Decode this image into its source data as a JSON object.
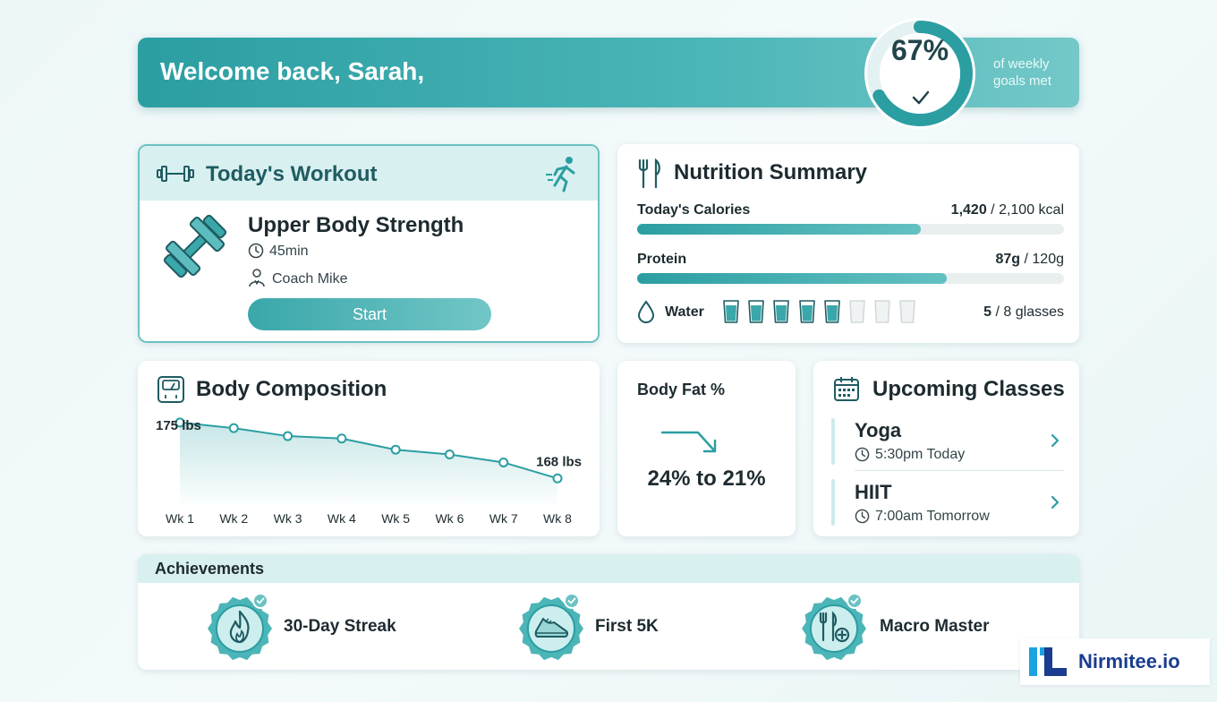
{
  "header": {
    "welcome": "Welcome back, Sarah,",
    "goal_percent": "67%",
    "goal_fraction": 0.67,
    "goal_caption_line1": "of weekly",
    "goal_caption_line2": "goals met"
  },
  "workout": {
    "title": "Today's Workout",
    "name": "Upper Body Strength",
    "duration": "45min",
    "coach": "Coach Mike",
    "start_label": "Start"
  },
  "nutrition": {
    "title": "Nutrition Summary",
    "calories": {
      "label": "Today's Calories",
      "current": "1,420",
      "target": "/ 2,100 kcal",
      "fraction": 0.664
    },
    "protein": {
      "label": "Protein",
      "current": "87g",
      "target": "/ 120g",
      "fraction": 0.725
    },
    "water": {
      "label": "Water",
      "current": "5",
      "target": "/ 8 glasses",
      "filled": 5,
      "total": 8
    }
  },
  "body_composition": {
    "title": "Body Composition",
    "start_label": "175 lbs",
    "end_label": "168 lbs"
  },
  "chart_data": {
    "type": "line",
    "categories": [
      "Wk 1",
      "Wk 2",
      "Wk 3",
      "Wk 4",
      "Wk 5",
      "Wk 6",
      "Wk 7",
      "Wk 8"
    ],
    "values": [
      175,
      174.3,
      173.3,
      173,
      171.6,
      171,
      170,
      168
    ],
    "ylim": [
      165,
      176
    ]
  },
  "body_fat": {
    "title": "Body Fat %",
    "value": "24% to 21%"
  },
  "classes": {
    "title": "Upcoming Classes",
    "items": [
      {
        "name": "Yoga",
        "time": "5:30pm Today"
      },
      {
        "name": "HIIT",
        "time": "7:00am Tomorrow"
      }
    ]
  },
  "achievements": {
    "title": "Achievements",
    "items": [
      {
        "label": "30-Day Streak",
        "icon": "flame-icon"
      },
      {
        "label": "First 5K",
        "icon": "running-shoe-icon"
      },
      {
        "label": "Macro Master",
        "icon": "fork-knife-plus-icon"
      }
    ]
  },
  "brand": {
    "name": "Nirmitee.io"
  },
  "colors": {
    "accent": "#2b9ea2",
    "accent_light": "#d9f0f0",
    "brand": "#1a3d8f",
    "brand_cyan": "#1aa3e0"
  }
}
